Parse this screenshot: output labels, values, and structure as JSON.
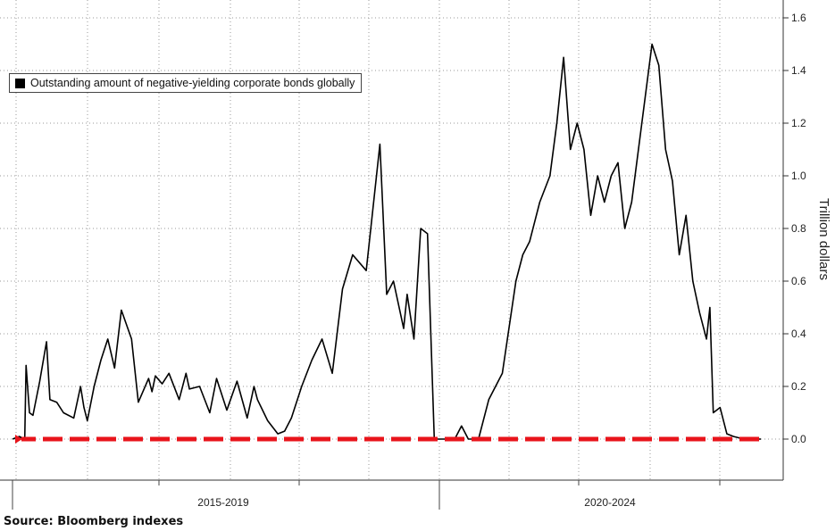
{
  "chart_data": {
    "type": "line",
    "title": "",
    "ylabel": "Trillion dollars",
    "xlabel": "",
    "ylim": [
      -0.15,
      1.7
    ],
    "yticks": [
      0.0,
      0.2,
      0.4,
      0.6,
      0.8,
      1.0,
      1.2,
      1.4,
      1.6
    ],
    "ytick_labels": [
      "0.0",
      "0.2",
      "0.4",
      "0.6",
      "0.8",
      "1.0",
      "1.2",
      "1.4",
      "1.6"
    ],
    "x_range": [
      2014.0,
      2026.0
    ],
    "period_labels": [
      "2015-2019",
      "2020-2024"
    ],
    "legend": {
      "position": "top-left",
      "entries": [
        "Outstanding amount of negative-yielding corporate bonds globally"
      ]
    },
    "series": [
      {
        "name": "Outstanding amount of negative-yielding corporate bonds globally",
        "color": "#000000",
        "x": [
          2014.0,
          2014.1,
          2014.18,
          2014.2,
          2014.25,
          2014.3,
          2014.4,
          2014.5,
          2014.55,
          2014.65,
          2014.75,
          2014.9,
          2015.0,
          2015.05,
          2015.1,
          2015.2,
          2015.3,
          2015.4,
          2015.5,
          2015.6,
          2015.75,
          2015.85,
          2016.0,
          2016.05,
          2016.1,
          2016.2,
          2016.3,
          2016.45,
          2016.55,
          2016.6,
          2016.75,
          2016.9,
          2017.0,
          2017.15,
          2017.3,
          2017.45,
          2017.55,
          2017.6,
          2017.75,
          2017.9,
          2018.0,
          2018.1,
          2018.25,
          2018.4,
          2018.55,
          2018.7,
          2018.85,
          2019.0,
          2019.2,
          2019.4,
          2019.5,
          2019.6,
          2019.75,
          2019.8,
          2019.9,
          2020.0,
          2020.1,
          2020.2,
          2020.3,
          2020.35,
          2020.4,
          2020.5,
          2020.6,
          2020.7,
          2020.85,
          2021.0,
          2021.2,
          2021.4,
          2021.5,
          2021.6,
          2021.75,
          2021.9,
          2022.0,
          2022.1,
          2022.2,
          2022.3,
          2022.4,
          2022.5,
          2022.6,
          2022.7,
          2022.8,
          2022.9,
          2023.0,
          2023.1,
          2023.2,
          2023.3,
          2023.4,
          2023.5,
          2023.6,
          2023.7,
          2023.8,
          2023.9,
          2024.0,
          2024.1,
          2024.2,
          2024.25,
          2024.3,
          2024.4,
          2024.5,
          2024.6,
          2024.75,
          2024.9,
          2025.0
        ],
        "values": [
          0.0,
          0.01,
          0.0,
          0.28,
          0.1,
          0.09,
          0.22,
          0.37,
          0.15,
          0.14,
          0.1,
          0.08,
          0.2,
          0.12,
          0.07,
          0.2,
          0.3,
          0.38,
          0.27,
          0.49,
          0.38,
          0.14,
          0.23,
          0.18,
          0.24,
          0.21,
          0.25,
          0.15,
          0.25,
          0.19,
          0.2,
          0.1,
          0.23,
          0.11,
          0.22,
          0.08,
          0.2,
          0.15,
          0.07,
          0.02,
          0.03,
          0.08,
          0.2,
          0.3,
          0.38,
          0.25,
          0.57,
          0.7,
          0.64,
          1.12,
          0.55,
          0.6,
          0.42,
          0.55,
          0.38,
          0.8,
          0.78,
          0.0,
          0.0,
          0.0,
          0.0,
          0.0,
          0.05,
          0.0,
          0.0,
          0.15,
          0.25,
          0.6,
          0.7,
          0.75,
          0.9,
          1.0,
          1.2,
          1.45,
          1.1,
          1.2,
          1.1,
          0.85,
          1.0,
          0.9,
          1.0,
          1.05,
          0.8,
          0.9,
          1.1,
          1.3,
          1.5,
          1.42,
          1.1,
          0.98,
          0.7,
          0.85,
          0.6,
          0.48,
          0.38,
          0.5,
          0.1,
          0.12,
          0.02,
          0.01,
          0.0,
          0.0,
          0.0
        ],
        "note": ""
      }
    ],
    "reference_line": {
      "value": 0.0,
      "color": "#e8141b",
      "style": "dashed-arrow-left"
    }
  },
  "source_text": "Source: Bloomberg indexes"
}
